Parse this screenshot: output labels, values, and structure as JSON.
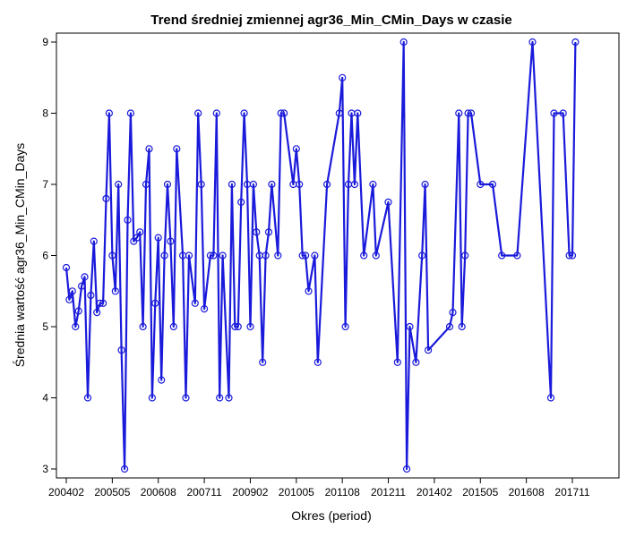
{
  "chart_data": {
    "type": "line",
    "title": "Trend średniej zmiennej agr36_Min_CMin_Days w czasie",
    "xlabel": "Okres (period)",
    "ylabel": "Średnia wartość agr36_Min_CMin_Days",
    "x_ticks": [
      "200402",
      "200505",
      "200608",
      "200711",
      "200902",
      "201005",
      "201108",
      "201211",
      "201402",
      "201505",
      "201608",
      "201711"
    ],
    "y_ticks": [
      3,
      4,
      5,
      6,
      7,
      8,
      9
    ],
    "ylim": [
      2.95,
      9.1
    ],
    "grid": false,
    "legend": "none",
    "marker": "open-circle",
    "colors": {
      "line": "#1a1adb",
      "marker": "#1a1adb",
      "axis": "#000000"
    },
    "series": [
      {
        "values": [
          [
            "200402",
            5.83
          ],
          [
            "200403",
            5.38
          ],
          [
            "200404",
            5.5
          ],
          [
            "200405",
            5.0
          ],
          [
            "200406",
            5.22
          ],
          [
            "200407",
            5.57
          ],
          [
            "200408",
            5.7
          ],
          [
            "200409",
            4.0
          ],
          [
            "200410",
            5.44
          ],
          [
            "200411",
            6.2
          ],
          [
            "200412",
            5.2
          ],
          [
            "200501",
            5.33
          ],
          [
            "200502",
            5.33
          ],
          [
            "200503",
            6.8
          ],
          [
            "200504",
            8.0
          ],
          [
            "200505",
            6.0
          ],
          [
            "200506",
            5.5
          ],
          [
            "200507",
            7.0
          ],
          [
            "200508",
            4.67
          ],
          [
            "200509",
            3.0
          ],
          [
            "200510",
            6.5
          ],
          [
            "200511",
            8.0
          ],
          [
            "200512",
            6.2
          ],
          [
            "200601",
            6.25
          ],
          [
            "200602",
            6.33
          ],
          [
            "200603",
            5.0
          ],
          [
            "200604",
            7.0
          ],
          [
            "200605",
            7.5
          ],
          [
            "200606",
            4.0
          ],
          [
            "200607",
            5.33
          ],
          [
            "200608",
            6.25
          ],
          [
            "200609",
            4.25
          ],
          [
            "200610",
            6.0
          ],
          [
            "200611",
            7.0
          ],
          [
            "200612",
            6.2
          ],
          [
            "200701",
            5.0
          ],
          [
            "200702",
            7.5
          ],
          [
            "200704",
            6.0
          ],
          [
            "200705",
            4.0
          ],
          [
            "200706",
            6.0
          ],
          [
            "200708",
            5.33
          ],
          [
            "200709",
            8.0
          ],
          [
            "200710",
            7.0
          ],
          [
            "200711",
            5.25
          ],
          [
            "200801",
            6.0
          ],
          [
            "200802",
            6.0
          ],
          [
            "200803",
            8.0
          ],
          [
            "200804",
            4.0
          ],
          [
            "200805",
            6.0
          ],
          [
            "200807",
            4.0
          ],
          [
            "200808",
            7.0
          ],
          [
            "200809",
            5.0
          ],
          [
            "200810",
            5.0
          ],
          [
            "200811",
            6.75
          ],
          [
            "200812",
            8.0
          ],
          [
            "200901",
            7.0
          ],
          [
            "200902",
            5.0
          ],
          [
            "200903",
            7.0
          ],
          [
            "200904",
            6.33
          ],
          [
            "200905",
            6.0
          ],
          [
            "200906",
            4.5
          ],
          [
            "200907",
            6.0
          ],
          [
            "200908",
            6.33
          ],
          [
            "200909",
            7.0
          ],
          [
            "200911",
            6.0
          ],
          [
            "200912",
            8.0
          ],
          [
            "201001",
            8.0
          ],
          [
            "201004",
            7.0
          ],
          [
            "201005",
            7.5
          ],
          [
            "201006",
            7.0
          ],
          [
            "201007",
            6.0
          ],
          [
            "201008",
            6.0
          ],
          [
            "201009",
            5.5
          ],
          [
            "201011",
            6.0
          ],
          [
            "201012",
            4.5
          ],
          [
            "201103",
            7.0
          ],
          [
            "201107",
            8.0
          ],
          [
            "201108",
            8.5
          ],
          [
            "201109",
            5.0
          ],
          [
            "201110",
            7.0
          ],
          [
            "201111",
            8.0
          ],
          [
            "201112",
            7.0
          ],
          [
            "201201",
            8.0
          ],
          [
            "201203",
            6.0
          ],
          [
            "201206",
            7.0
          ],
          [
            "201207",
            6.0
          ],
          [
            "201211",
            6.75
          ],
          [
            "201302",
            4.5
          ],
          [
            "201304",
            9.0
          ],
          [
            "201305",
            3.0
          ],
          [
            "201306",
            5.0
          ],
          [
            "201308",
            4.5
          ],
          [
            "201310",
            6.0
          ],
          [
            "201311",
            7.0
          ],
          [
            "201312",
            4.67
          ],
          [
            "201407",
            5.0
          ],
          [
            "201408",
            5.2
          ],
          [
            "201410",
            8.0
          ],
          [
            "201411",
            5.0
          ],
          [
            "201412",
            6.0
          ],
          [
            "201501",
            8.0
          ],
          [
            "201502",
            8.0
          ],
          [
            "201505",
            7.0
          ],
          [
            "201509",
            7.0
          ],
          [
            "201512",
            6.0
          ],
          [
            "201605",
            6.0
          ],
          [
            "201610",
            9.0
          ],
          [
            "201704",
            4.0
          ],
          [
            "201705",
            8.0
          ],
          [
            "201708",
            8.0
          ],
          [
            "201710",
            6.0
          ],
          [
            "201711",
            6.0
          ],
          [
            "201712",
            9.0
          ]
        ]
      }
    ]
  }
}
